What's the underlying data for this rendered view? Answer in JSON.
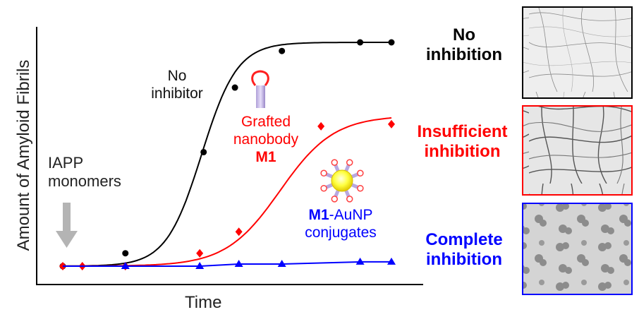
{
  "chart_data": {
    "type": "line",
    "xlabel": "Time",
    "ylabel": "Amount of Amyloid Fibrils",
    "x": [
      0,
      1,
      2,
      3,
      4,
      5,
      6,
      7,
      8
    ],
    "xlim": [
      0,
      8.8
    ],
    "ylim": [
      0,
      1.1
    ],
    "series": [
      {
        "color": "#000000",
        "marker": "circle",
        "points": [
          [
            0,
            0
          ],
          [
            1.6,
            0.06
          ],
          [
            3.6,
            0.53
          ],
          [
            4.4,
            0.83
          ],
          [
            5.6,
            1.0
          ],
          [
            7.6,
            1.04
          ],
          [
            8.4,
            1.04
          ]
        ],
        "curve": "sigmoid"
      },
      {
        "color": "#ff0000",
        "marker": "diamond",
        "points": [
          [
            0,
            0
          ],
          [
            0.5,
            0
          ],
          [
            1.6,
            0
          ],
          [
            3.5,
            0.06
          ],
          [
            4.5,
            0.16
          ],
          [
            6.6,
            0.65
          ],
          [
            8.4,
            0.66
          ]
        ],
        "curve": "sigmoid"
      },
      {
        "color": "#0000ff",
        "marker": "triangle",
        "points": [
          [
            1.6,
            0
          ],
          [
            3.5,
            0
          ],
          [
            4.5,
            0.01
          ],
          [
            5.6,
            0.01
          ],
          [
            7.6,
            0.02
          ],
          [
            8.4,
            0.02
          ]
        ],
        "curve": "linear"
      }
    ]
  },
  "annotations": {
    "no_inhibitor": [
      "No",
      "inhibitor"
    ],
    "grafted": [
      "Grafted",
      "nanobody"
    ],
    "grafted_m1": "M1",
    "iapp": [
      "IAPP",
      "monomers"
    ],
    "conjugate_bold": "M1",
    "conjugate_rest": "-AuNP",
    "conjugate_line2": "conjugates"
  },
  "panels": [
    {
      "label": [
        "No",
        "inhibition"
      ],
      "color": "#000000"
    },
    {
      "label": [
        "Insufficient",
        "inhibition"
      ],
      "color": "#ff0000"
    },
    {
      "label": [
        "Complete",
        "inhibition"
      ],
      "color": "#0000ff"
    }
  ]
}
